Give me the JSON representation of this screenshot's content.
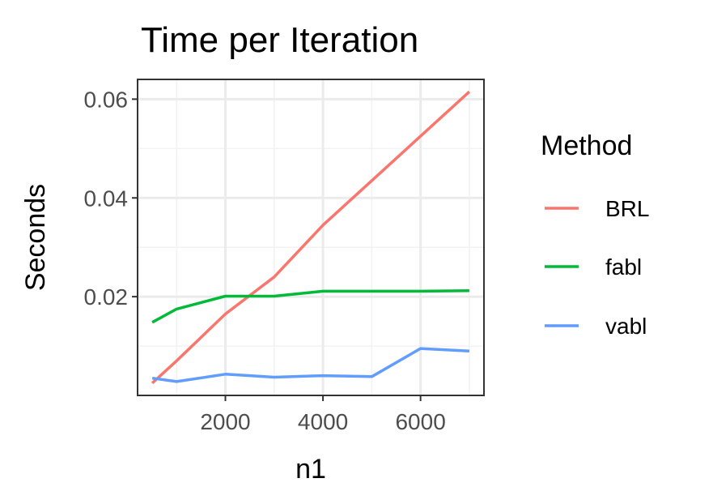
{
  "chart_data": {
    "type": "line",
    "title": "Time per Iteration",
    "xlabel": "n1",
    "ylabel": "Seconds",
    "xlim": [
      200,
      7300
    ],
    "ylim": [
      0.0,
      0.064
    ],
    "x_ticks": [
      2000,
      4000,
      6000
    ],
    "x_tick_labels": [
      "2000",
      "4000",
      "6000"
    ],
    "y_ticks": [
      0.02,
      0.04,
      0.06
    ],
    "y_tick_labels": [
      "0.02",
      "0.04",
      "0.06"
    ],
    "grid": true,
    "legend": {
      "title": "Method",
      "position": "right"
    },
    "series": [
      {
        "name": "BRL",
        "color": "#F8766D",
        "x": [
          500,
          1000,
          2000,
          3000,
          4000,
          5000,
          6000,
          7000
        ],
        "y": [
          0.0025,
          0.007,
          0.0165,
          0.024,
          0.0345,
          0.0435,
          0.0525,
          0.0615
        ]
      },
      {
        "name": "fabl",
        "color": "#00BA38",
        "x": [
          500,
          1000,
          2000,
          3000,
          4000,
          5000,
          6000,
          7000
        ],
        "y": [
          0.0148,
          0.0175,
          0.0201,
          0.0201,
          0.0211,
          0.0211,
          0.0211,
          0.0212
        ]
      },
      {
        "name": "vabl",
        "color": "#619CFF",
        "x": [
          500,
          1000,
          2000,
          3000,
          4000,
          5000,
          6000,
          7000
        ],
        "y": [
          0.0035,
          0.0028,
          0.0043,
          0.0037,
          0.004,
          0.0038,
          0.0095,
          0.009
        ]
      }
    ]
  }
}
